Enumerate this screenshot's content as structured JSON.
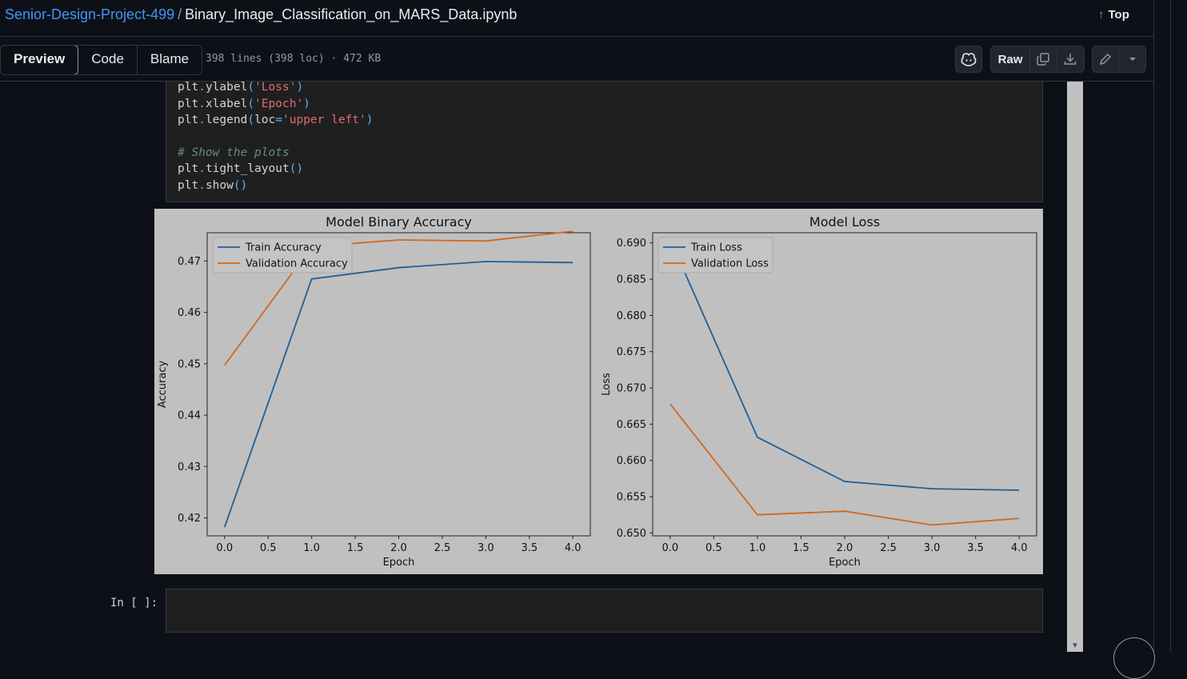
{
  "header": {
    "repo": "Senior-Design-Project-499",
    "separator": "/",
    "file": "Binary_Image_Classification_on_MARS_Data.ipynb",
    "top_label": "Top"
  },
  "toolbar": {
    "tabs": [
      {
        "label": "Preview",
        "active": true
      },
      {
        "label": "Code",
        "active": false
      },
      {
        "label": "Blame",
        "active": false
      }
    ],
    "meta": "398 lines (398 loc) · 472 KB",
    "raw_label": "Raw",
    "icons": [
      "copilot-icon",
      "copy-icon",
      "download-icon",
      "pencil-icon",
      "chevron-down-icon"
    ]
  },
  "code": {
    "lines": [
      {
        "parts": [
          [
            "plt",
            ""
          ],
          [
            ".",
            "p"
          ],
          [
            "ylabel",
            ""
          ],
          [
            "(",
            "p"
          ],
          [
            "'Loss'",
            "s"
          ],
          [
            ")",
            "p"
          ]
        ]
      },
      {
        "parts": [
          [
            "plt",
            ""
          ],
          [
            ".",
            "p"
          ],
          [
            "xlabel",
            ""
          ],
          [
            "(",
            "p"
          ],
          [
            "'Epoch'",
            "s"
          ],
          [
            ")",
            "p"
          ]
        ]
      },
      {
        "parts": [
          [
            "plt",
            ""
          ],
          [
            ".",
            "p"
          ],
          [
            "legend",
            ""
          ],
          [
            "(",
            "p"
          ],
          [
            "loc",
            ""
          ],
          [
            "=",
            "p"
          ],
          [
            "'upper left'",
            "s"
          ],
          [
            ")",
            "p"
          ]
        ]
      },
      {
        "parts": []
      },
      {
        "parts": [
          [
            "# Show the plots",
            "c"
          ]
        ]
      },
      {
        "parts": [
          [
            "plt",
            ""
          ],
          [
            ".",
            "p"
          ],
          [
            "tight_layout",
            ""
          ],
          [
            "()",
            "p"
          ]
        ]
      },
      {
        "parts": [
          [
            "plt",
            ""
          ],
          [
            ".",
            "p"
          ],
          [
            "show",
            ""
          ],
          [
            "()",
            "p"
          ]
        ]
      }
    ]
  },
  "empty_cell": {
    "prompt": "In [ ]:"
  },
  "chart_data": [
    {
      "type": "line",
      "title": "Model Binary Accuracy",
      "xlabel": "Epoch",
      "ylabel": "Accuracy",
      "x": [
        0,
        1,
        2,
        3,
        4
      ],
      "xlim": [
        -0.2,
        4.2
      ],
      "ylim": [
        0.4165,
        0.4755
      ],
      "xticks": [
        "0.0",
        "0.5",
        "1.0",
        "1.5",
        "2.0",
        "2.5",
        "3.0",
        "3.5",
        "4.0"
      ],
      "yticks": [
        "0.42",
        "0.43",
        "0.44",
        "0.45",
        "0.46",
        "0.47"
      ],
      "legend": "top-left",
      "series": [
        {
          "name": "Train Accuracy",
          "color": "#1f5f96",
          "values": [
            0.4182,
            0.4665,
            0.4687,
            0.4699,
            0.4697
          ]
        },
        {
          "name": "Validation Accuracy",
          "color": "#d2691e",
          "values": [
            0.4497,
            0.4728,
            0.4741,
            0.4739,
            0.4758
          ]
        }
      ]
    },
    {
      "type": "line",
      "title": "Model Loss",
      "xlabel": "Epoch",
      "ylabel": "Loss",
      "x": [
        0,
        1,
        2,
        3,
        4
      ],
      "xlim": [
        -0.2,
        4.2
      ],
      "ylim": [
        0.6496,
        0.6914
      ],
      "xticks": [
        "0.0",
        "0.5",
        "1.0",
        "1.5",
        "2.0",
        "2.5",
        "3.0",
        "3.5",
        "4.0"
      ],
      "yticks": [
        "0.650",
        "0.655",
        "0.660",
        "0.665",
        "0.670",
        "0.675",
        "0.680",
        "0.685",
        "0.690"
      ],
      "legend": "top-left",
      "series": [
        {
          "name": "Train Loss",
          "color": "#1f5f96",
          "values": [
            0.6905,
            0.6632,
            0.6571,
            0.6561,
            0.6559
          ]
        },
        {
          "name": "Validation Loss",
          "color": "#d2691e",
          "values": [
            0.6678,
            0.6525,
            0.653,
            0.6511,
            0.652
          ]
        }
      ]
    }
  ]
}
